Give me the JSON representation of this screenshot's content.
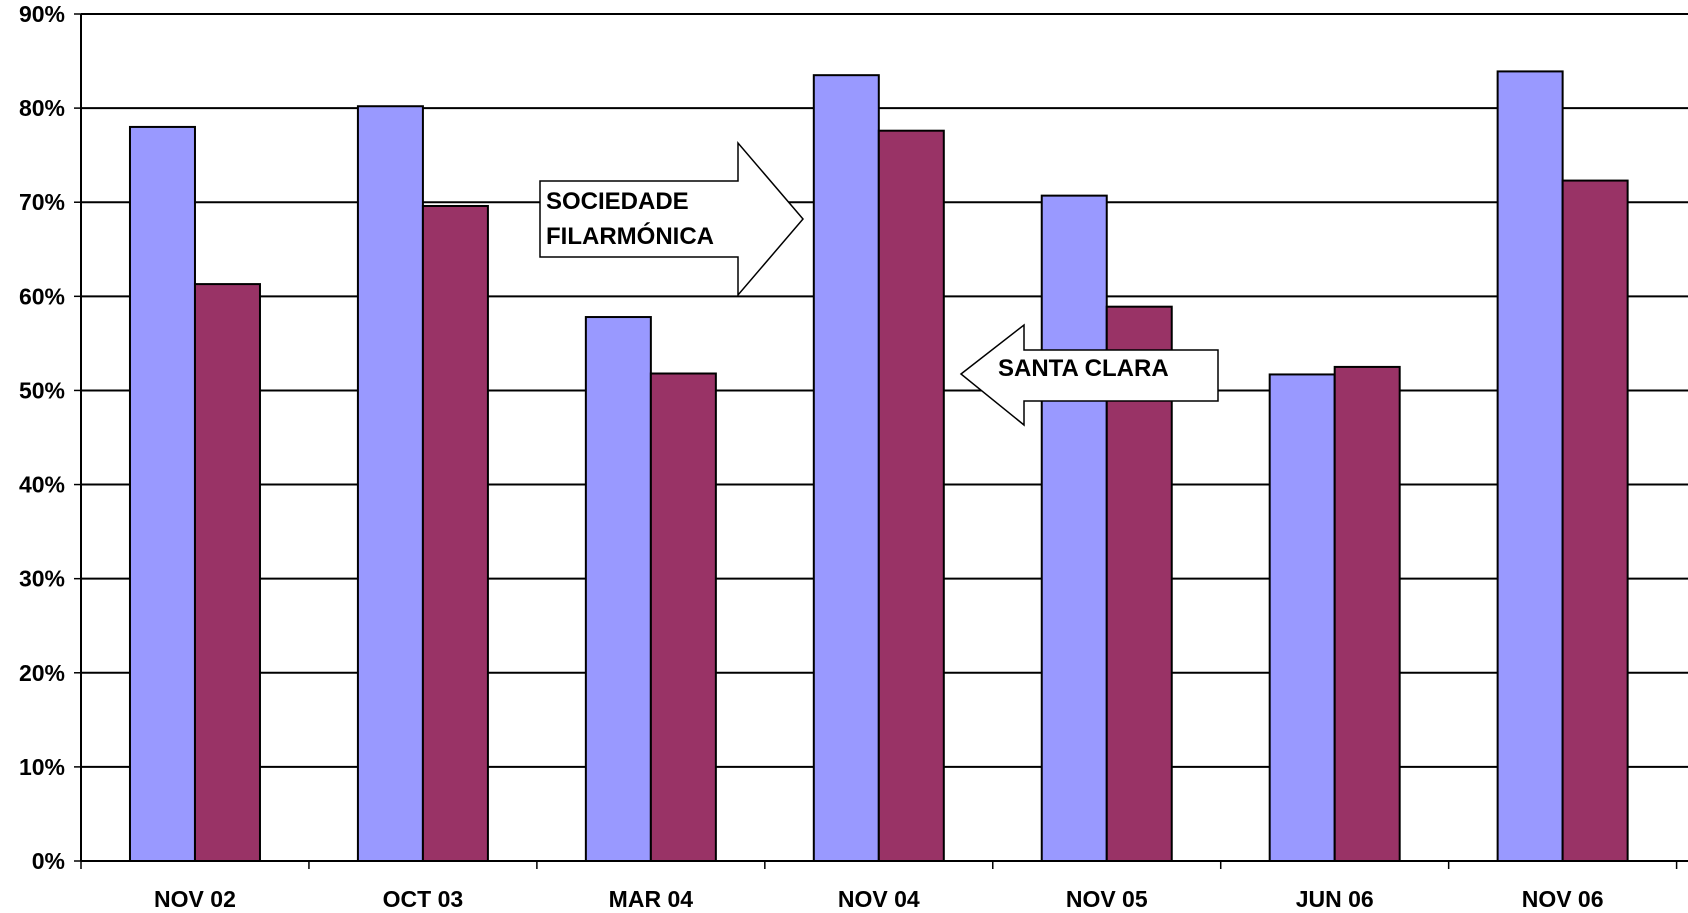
{
  "colors": {
    "series_a": "#9999FF",
    "series_b": "#993366",
    "grid": "#000000",
    "background": "#FFFFFF"
  },
  "callouts": {
    "right_arrow_line1": "SOCIEDADE",
    "right_arrow_line2": "FILARMÓNICA",
    "left_arrow": "SANTA CLARA"
  },
  "chart_data": {
    "type": "bar",
    "categories": [
      "NOV 02",
      "OCT 03",
      "MAR 04",
      "NOV 04",
      "NOV 05",
      "JUN 06",
      "NOV 06"
    ],
    "series": [
      {
        "values": [
          78,
          80.2,
          57.8,
          83.5,
          70.7,
          51.7,
          83.9
        ]
      },
      {
        "values": [
          61.3,
          69.6,
          51.8,
          77.6,
          58.9,
          52.5,
          72.3
        ]
      }
    ],
    "ylim": [
      0,
      90
    ],
    "yticks": [
      "0%",
      "10%",
      "20%",
      "30%",
      "40%",
      "50%",
      "60%",
      "70%",
      "80%",
      "90%"
    ],
    "grid": true,
    "xlabel": "",
    "ylabel": "",
    "title": ""
  }
}
